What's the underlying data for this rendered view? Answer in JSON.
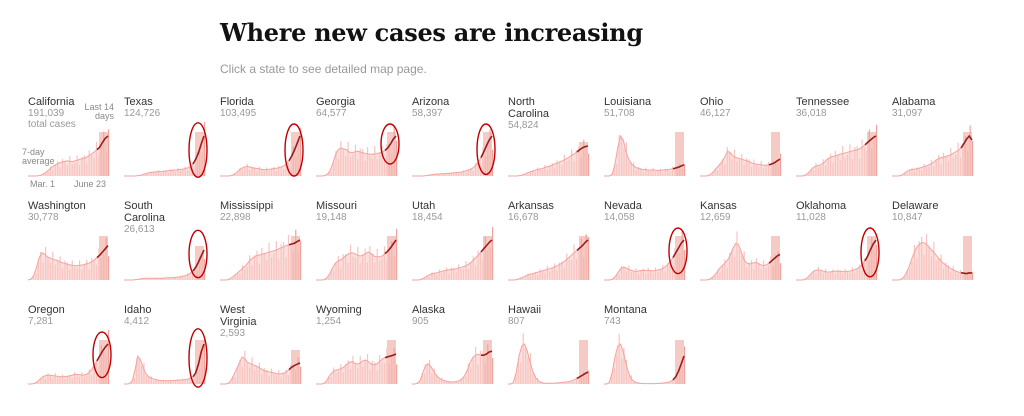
{
  "header": {
    "title": "Where new cases are increasing",
    "subtitle": "Click a state to see detailed map page."
  },
  "legend": {
    "total_cases": "total cases",
    "last_14_days": "Last 14 days",
    "seven_day_average": "7-day average",
    "start_date": "Mar. 1",
    "end_date": "June 23"
  },
  "colors": {
    "bars": "#f7c4c0",
    "recent_bars": "#efa39c",
    "recent_band": "#f3b9b3",
    "average_line": "#f4a3a0",
    "recent_line": "#9b1c1c",
    "highlight_ring": "#c00000"
  },
  "chart_data": {
    "type": "area",
    "title": "Where new cases are increasing",
    "x_range": [
      "Mar. 1",
      "June 23"
    ],
    "unit": "new cases per day, 7-day average (relative, state-scaled)",
    "states": [
      {
        "name": "California",
        "total_cases": "191,039",
        "curve": [
          0,
          0,
          0,
          0,
          0.01,
          0.03,
          0.07,
          0.12,
          0.18,
          0.24,
          0.28,
          0.32,
          0.34,
          0.36,
          0.38,
          0.37,
          0.36,
          0.38,
          0.4,
          0.42,
          0.44,
          0.46,
          0.5,
          0.55,
          0.6,
          0.66,
          0.72,
          0.84,
          0.94,
          1.0
        ],
        "increasing": false
      },
      {
        "name": "Texas",
        "total_cases": "124,726",
        "curve": [
          0,
          0,
          0,
          0,
          0,
          0.01,
          0.02,
          0.04,
          0.06,
          0.08,
          0.09,
          0.1,
          0.11,
          0.11,
          0.12,
          0.12,
          0.13,
          0.14,
          0.15,
          0.15,
          0.16,
          0.17,
          0.18,
          0.2,
          0.24,
          0.3,
          0.42,
          0.58,
          0.8,
          1.0
        ],
        "increasing": true
      },
      {
        "name": "Florida",
        "total_cases": "103,495",
        "curve": [
          0,
          0,
          0,
          0,
          0.01,
          0.04,
          0.09,
          0.15,
          0.2,
          0.23,
          0.24,
          0.22,
          0.2,
          0.19,
          0.18,
          0.17,
          0.16,
          0.16,
          0.17,
          0.18,
          0.19,
          0.2,
          0.22,
          0.25,
          0.3,
          0.38,
          0.5,
          0.65,
          0.82,
          1.0
        ],
        "increasing": true
      },
      {
        "name": "Georgia",
        "total_cases": "64,577",
        "curve": [
          0,
          0,
          0,
          0.01,
          0.04,
          0.12,
          0.3,
          0.52,
          0.66,
          0.7,
          0.68,
          0.66,
          0.6,
          0.58,
          0.6,
          0.62,
          0.6,
          0.58,
          0.56,
          0.55,
          0.54,
          0.55,
          0.56,
          0.58,
          0.6,
          0.64,
          0.7,
          0.8,
          0.92,
          1.0
        ],
        "increasing": true
      },
      {
        "name": "Arizona",
        "total_cases": "58,397",
        "curve": [
          0,
          0,
          0,
          0,
          0,
          0.01,
          0.02,
          0.03,
          0.04,
          0.05,
          0.05,
          0.06,
          0.06,
          0.07,
          0.07,
          0.08,
          0.08,
          0.09,
          0.1,
          0.12,
          0.14,
          0.16,
          0.2,
          0.26,
          0.34,
          0.46,
          0.6,
          0.76,
          0.9,
          1.0
        ],
        "increasing": true
      },
      {
        "name": "North Carolina",
        "total_cases": "54,824",
        "curve": [
          0,
          0,
          0,
          0,
          0.01,
          0.03,
          0.06,
          0.1,
          0.14,
          0.17,
          0.2,
          0.22,
          0.24,
          0.27,
          0.3,
          0.33,
          0.36,
          0.4,
          0.44,
          0.48,
          0.52,
          0.57,
          0.62,
          0.68,
          0.74,
          0.8,
          0.88,
          0.94,
          0.98,
          1.0
        ],
        "increasing": false
      },
      {
        "name": "Louisiana",
        "total_cases": "51,708",
        "curve": [
          0,
          0,
          0,
          0.05,
          0.3,
          0.72,
          1.0,
          0.9,
          0.6,
          0.42,
          0.3,
          0.24,
          0.2,
          0.18,
          0.16,
          0.16,
          0.15,
          0.15,
          0.15,
          0.14,
          0.14,
          0.15,
          0.15,
          0.16,
          0.17,
          0.18,
          0.2,
          0.22,
          0.25,
          0.28
        ],
        "increasing": false
      },
      {
        "name": "Ohio",
        "total_cases": "46,127",
        "curve": [
          0,
          0,
          0,
          0.01,
          0.05,
          0.12,
          0.2,
          0.28,
          0.36,
          0.48,
          0.62,
          0.58,
          0.5,
          0.46,
          0.44,
          0.42,
          0.4,
          0.38,
          0.35,
          0.32,
          0.3,
          0.29,
          0.28,
          0.27,
          0.27,
          0.28,
          0.3,
          0.33,
          0.38,
          0.42
        ],
        "increasing": false
      },
      {
        "name": "Tennessee",
        "total_cases": "36,018",
        "curve": [
          0,
          0,
          0,
          0.01,
          0.05,
          0.12,
          0.2,
          0.24,
          0.26,
          0.28,
          0.33,
          0.4,
          0.45,
          0.48,
          0.5,
          0.52,
          0.55,
          0.56,
          0.58,
          0.6,
          0.62,
          0.64,
          0.65,
          0.68,
          0.72,
          0.78,
          0.84,
          0.9,
          0.96,
          1.0
        ],
        "increasing": false
      },
      {
        "name": "Alabama",
        "total_cases": "31,097",
        "curve": [
          0,
          0,
          0,
          0.01,
          0.04,
          0.1,
          0.14,
          0.16,
          0.17,
          0.18,
          0.2,
          0.22,
          0.24,
          0.27,
          0.3,
          0.34,
          0.4,
          0.44,
          0.46,
          0.48,
          0.5,
          0.52,
          0.56,
          0.6,
          0.64,
          0.7,
          0.8,
          0.92,
          1.0,
          0.9
        ],
        "increasing": false
      },
      {
        "name": "Washington",
        "total_cases": "30,778",
        "curve": [
          0,
          0.02,
          0.1,
          0.3,
          0.55,
          0.68,
          0.65,
          0.58,
          0.55,
          0.52,
          0.5,
          0.48,
          0.44,
          0.42,
          0.4,
          0.38,
          0.37,
          0.36,
          0.36,
          0.37,
          0.38,
          0.4,
          0.42,
          0.45,
          0.5,
          0.56,
          0.62,
          0.7,
          0.78,
          0.86
        ],
        "increasing": false
      },
      {
        "name": "South Carolina",
        "total_cases": "26,613",
        "curve": [
          0,
          0,
          0,
          0,
          0.01,
          0.02,
          0.04,
          0.05,
          0.06,
          0.06,
          0.06,
          0.06,
          0.06,
          0.06,
          0.06,
          0.07,
          0.07,
          0.08,
          0.08,
          0.09,
          0.1,
          0.12,
          0.14,
          0.17,
          0.22,
          0.3,
          0.42,
          0.6,
          0.8,
          1.0
        ],
        "increasing": true
      },
      {
        "name": "Mississippi",
        "total_cases": "22,898",
        "curve": [
          0,
          0,
          0,
          0.01,
          0.05,
          0.1,
          0.16,
          0.22,
          0.28,
          0.34,
          0.42,
          0.5,
          0.56,
          0.6,
          0.62,
          0.64,
          0.66,
          0.68,
          0.7,
          0.72,
          0.74,
          0.77,
          0.8,
          0.83,
          0.86,
          0.88,
          0.9,
          0.92,
          0.96,
          1.0
        ],
        "increasing": false
      },
      {
        "name": "Missouri",
        "total_cases": "19,148",
        "curve": [
          0,
          0,
          0,
          0.01,
          0.06,
          0.16,
          0.3,
          0.42,
          0.48,
          0.5,
          0.56,
          0.62,
          0.66,
          0.68,
          0.66,
          0.62,
          0.6,
          0.62,
          0.66,
          0.7,
          0.66,
          0.6,
          0.58,
          0.58,
          0.6,
          0.66,
          0.72,
          0.8,
          0.9,
          1.0
        ],
        "increasing": false
      },
      {
        "name": "Utah",
        "total_cases": "18,454",
        "curve": [
          0,
          0,
          0,
          0.01,
          0.04,
          0.08,
          0.12,
          0.15,
          0.17,
          0.18,
          0.2,
          0.22,
          0.24,
          0.25,
          0.26,
          0.27,
          0.28,
          0.3,
          0.32,
          0.34,
          0.37,
          0.42,
          0.48,
          0.55,
          0.62,
          0.7,
          0.78,
          0.86,
          0.94,
          1.0
        ],
        "increasing": false
      },
      {
        "name": "Arkansas",
        "total_cases": "16,678",
        "curve": [
          0,
          0,
          0,
          0.01,
          0.03,
          0.06,
          0.09,
          0.12,
          0.14,
          0.16,
          0.18,
          0.2,
          0.22,
          0.24,
          0.26,
          0.28,
          0.3,
          0.33,
          0.36,
          0.4,
          0.44,
          0.5,
          0.56,
          0.62,
          0.68,
          0.74,
          0.8,
          0.86,
          0.94,
          1.0
        ],
        "increasing": false
      },
      {
        "name": "Nevada",
        "total_cases": "14,058",
        "curve": [
          0,
          0,
          0,
          0.02,
          0.08,
          0.18,
          0.28,
          0.32,
          0.3,
          0.26,
          0.24,
          0.22,
          0.22,
          0.23,
          0.24,
          0.24,
          0.24,
          0.23,
          0.23,
          0.24,
          0.26,
          0.28,
          0.32,
          0.38,
          0.46,
          0.56,
          0.68,
          0.8,
          0.92,
          1.0
        ],
        "increasing": true
      },
      {
        "name": "Kansas",
        "total_cases": "12,659",
        "curve": [
          0,
          0,
          0,
          0.01,
          0.04,
          0.1,
          0.18,
          0.28,
          0.36,
          0.42,
          0.5,
          0.62,
          0.8,
          0.92,
          0.88,
          0.7,
          0.5,
          0.42,
          0.4,
          0.42,
          0.44,
          0.42,
          0.38,
          0.36,
          0.38,
          0.42,
          0.48,
          0.54,
          0.6,
          0.64
        ],
        "increasing": false
      },
      {
        "name": "Oklahoma",
        "total_cases": "11,028",
        "curve": [
          0,
          0,
          0,
          0.01,
          0.05,
          0.12,
          0.2,
          0.24,
          0.25,
          0.24,
          0.22,
          0.2,
          0.2,
          0.21,
          0.22,
          0.22,
          0.22,
          0.21,
          0.21,
          0.22,
          0.23,
          0.25,
          0.28,
          0.32,
          0.38,
          0.48,
          0.6,
          0.76,
          0.9,
          1.0
        ],
        "increasing": true
      },
      {
        "name": "Delaware",
        "total_cases": "10,847",
        "curve": [
          0,
          0,
          0,
          0.01,
          0.05,
          0.15,
          0.3,
          0.5,
          0.68,
          0.82,
          0.9,
          0.94,
          0.92,
          0.86,
          0.78,
          0.7,
          0.62,
          0.54,
          0.46,
          0.4,
          0.34,
          0.3,
          0.26,
          0.23,
          0.2,
          0.18,
          0.17,
          0.16,
          0.18,
          0.17
        ],
        "increasing": false
      },
      {
        "name": "Oregon",
        "total_cases": "7,281",
        "curve": [
          0,
          0,
          0.01,
          0.04,
          0.1,
          0.16,
          0.2,
          0.22,
          0.22,
          0.21,
          0.2,
          0.19,
          0.18,
          0.18,
          0.19,
          0.2,
          0.22,
          0.24,
          0.24,
          0.23,
          0.22,
          0.24,
          0.28,
          0.36,
          0.46,
          0.58,
          0.7,
          0.82,
          0.92,
          1.0
        ],
        "increasing": true
      },
      {
        "name": "Idaho",
        "total_cases": "4,412",
        "curve": [
          0,
          0,
          0.01,
          0.08,
          0.35,
          0.7,
          0.6,
          0.4,
          0.25,
          0.18,
          0.14,
          0.12,
          0.1,
          0.09,
          0.08,
          0.08,
          0.08,
          0.08,
          0.09,
          0.09,
          0.1,
          0.1,
          0.11,
          0.12,
          0.14,
          0.18,
          0.28,
          0.5,
          0.8,
          1.0
        ],
        "increasing": true
      },
      {
        "name": "West Virginia",
        "total_cases": "2,593",
        "curve": [
          0,
          0,
          0,
          0.02,
          0.12,
          0.3,
          0.5,
          0.7,
          0.9,
          0.84,
          0.72,
          0.68,
          0.64,
          0.6,
          0.56,
          0.5,
          0.44,
          0.42,
          0.4,
          0.38,
          0.36,
          0.34,
          0.34,
          0.36,
          0.4,
          0.48,
          0.56,
          0.62,
          0.66,
          0.7
        ],
        "increasing": false
      },
      {
        "name": "Wyoming",
        "total_cases": "1,254",
        "curve": [
          0,
          0,
          0,
          0.02,
          0.1,
          0.22,
          0.3,
          0.34,
          0.36,
          0.38,
          0.42,
          0.48,
          0.54,
          0.56,
          0.52,
          0.5,
          0.52,
          0.58,
          0.6,
          0.56,
          0.5,
          0.48,
          0.5,
          0.56,
          0.62,
          0.66,
          0.68,
          0.7,
          0.72,
          0.75
        ],
        "increasing": false
      },
      {
        "name": "Alaska",
        "total_cases": "905",
        "curve": [
          0,
          0,
          0.02,
          0.1,
          0.3,
          0.48,
          0.5,
          0.42,
          0.3,
          0.2,
          0.14,
          0.1,
          0.08,
          0.06,
          0.05,
          0.05,
          0.06,
          0.08,
          0.12,
          0.2,
          0.34,
          0.52,
          0.66,
          0.72,
          0.74,
          0.72,
          0.72,
          0.75,
          0.8,
          0.82
        ],
        "increasing": false
      },
      {
        "name": "Hawaii",
        "total_cases": "807",
        "curve": [
          0,
          0,
          0.05,
          0.3,
          0.7,
          0.95,
          1.0,
          0.82,
          0.55,
          0.32,
          0.16,
          0.08,
          0.04,
          0.02,
          0.02,
          0.02,
          0.02,
          0.02,
          0.03,
          0.03,
          0.04,
          0.05,
          0.06,
          0.08,
          0.11,
          0.14,
          0.18,
          0.22,
          0.26,
          0.3
        ],
        "increasing": false
      },
      {
        "name": "Montana",
        "total_cases": "743",
        "curve": [
          0,
          0,
          0.05,
          0.3,
          0.68,
          0.95,
          1.0,
          0.8,
          0.5,
          0.26,
          0.12,
          0.06,
          0.03,
          0.02,
          0.01,
          0.01,
          0.01,
          0.01,
          0.01,
          0.01,
          0.02,
          0.02,
          0.03,
          0.04,
          0.06,
          0.1,
          0.18,
          0.32,
          0.5,
          0.7
        ],
        "increasing": false
      }
    ]
  }
}
